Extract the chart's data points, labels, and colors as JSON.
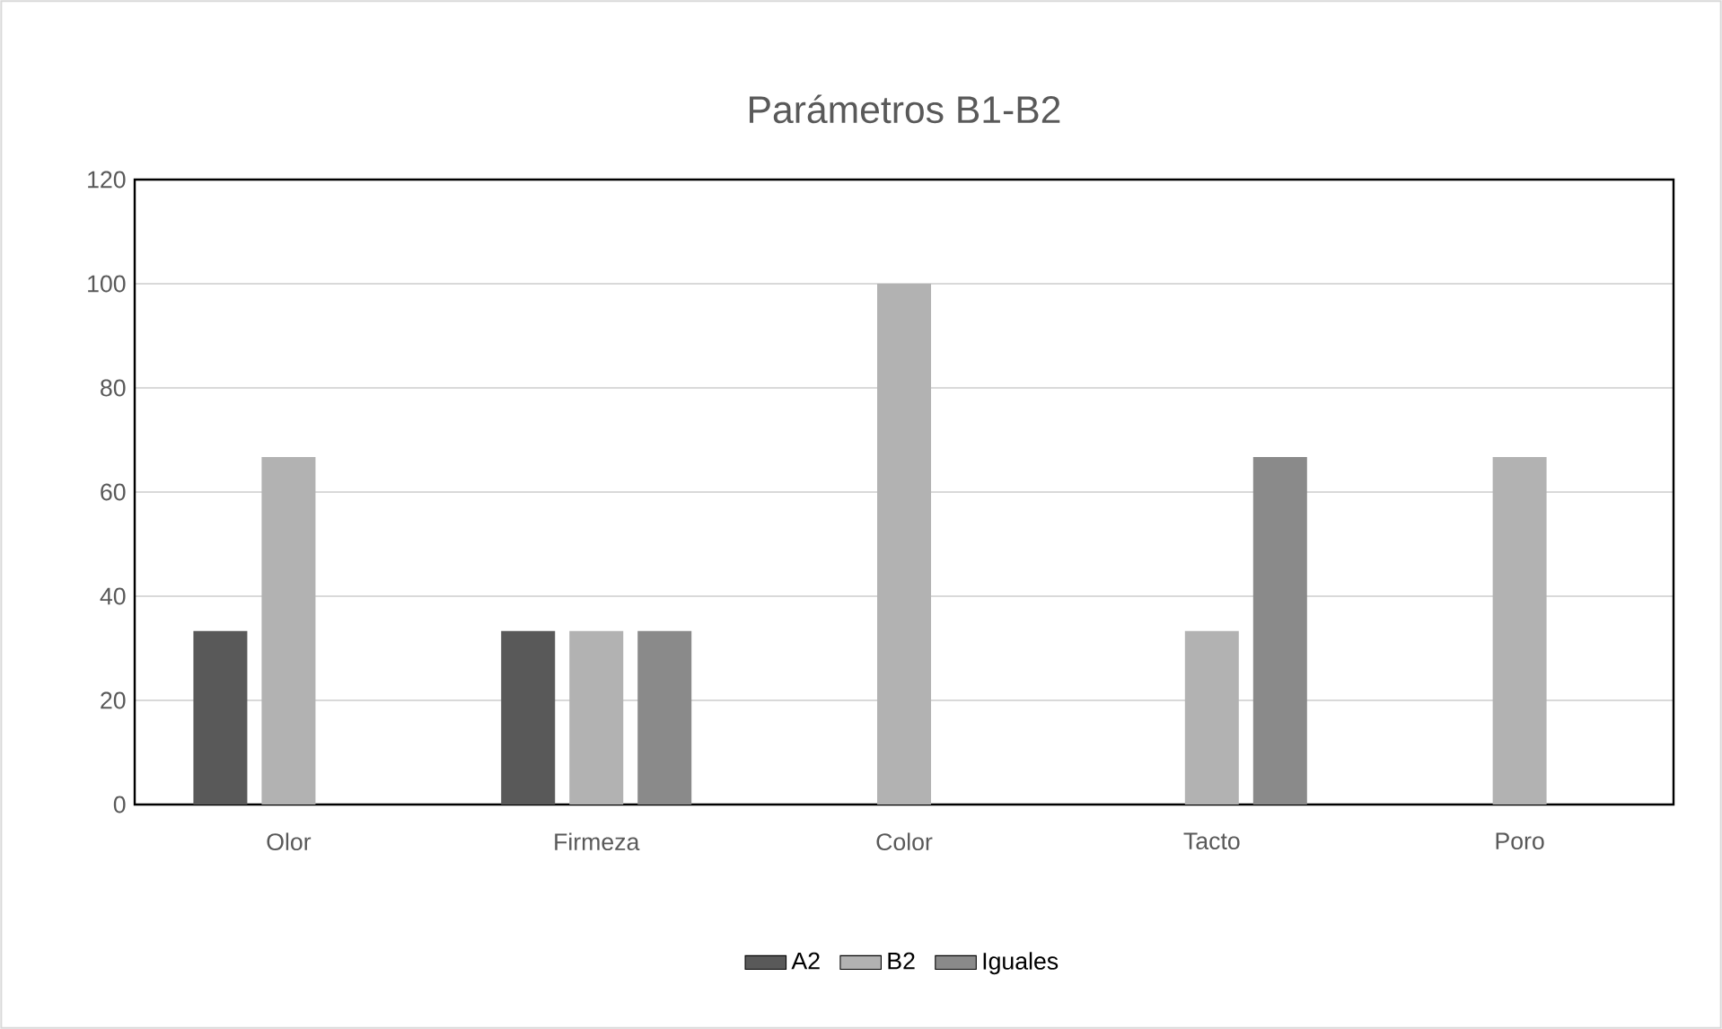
{
  "chart_data": {
    "type": "bar",
    "title": "Parámetros B1-B2",
    "categories": [
      "Olor",
      "Firmeza",
      "Color",
      "Tacto",
      "Poro"
    ],
    "series": [
      {
        "name": "A2",
        "color": "#595959",
        "values": [
          33.3,
          33.3,
          0,
          0,
          0
        ]
      },
      {
        "name": "B2",
        "color": "#b2b2b2",
        "values": [
          66.7,
          33.3,
          100,
          33.3,
          66.7
        ]
      },
      {
        "name": "Iguales",
        "color": "#8a8a8a",
        "values": [
          0,
          33.3,
          0,
          66.7,
          0
        ]
      }
    ],
    "ylim": [
      0,
      120
    ],
    "yticks": [
      0,
      20,
      40,
      60,
      80,
      100,
      120
    ],
    "grid": "y",
    "legend": "bottom"
  }
}
